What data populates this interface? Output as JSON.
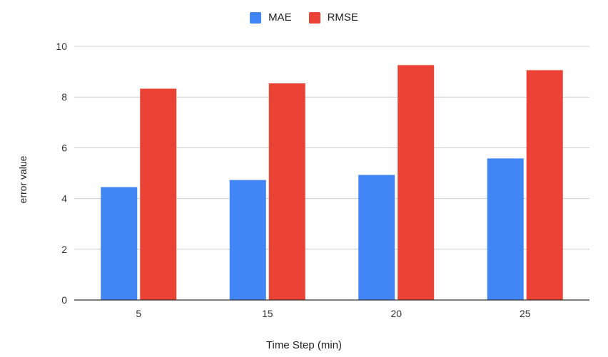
{
  "chart_data": {
    "type": "bar",
    "categories": [
      "5",
      "15",
      "20",
      "25"
    ],
    "series": [
      {
        "name": "MAE",
        "values": [
          4.45,
          4.73,
          4.93,
          5.58
        ],
        "color": "#4285f4"
      },
      {
        "name": "RMSE",
        "values": [
          8.33,
          8.54,
          9.26,
          9.06
        ],
        "color": "#ea4335"
      }
    ],
    "xlabel": "Time Step (min)",
    "ylabel": "error value",
    "ylim": [
      0,
      10
    ],
    "yticks": [
      "0",
      "2",
      "4",
      "6",
      "8",
      "10"
    ],
    "grid": true,
    "legend_position": "top-center"
  }
}
